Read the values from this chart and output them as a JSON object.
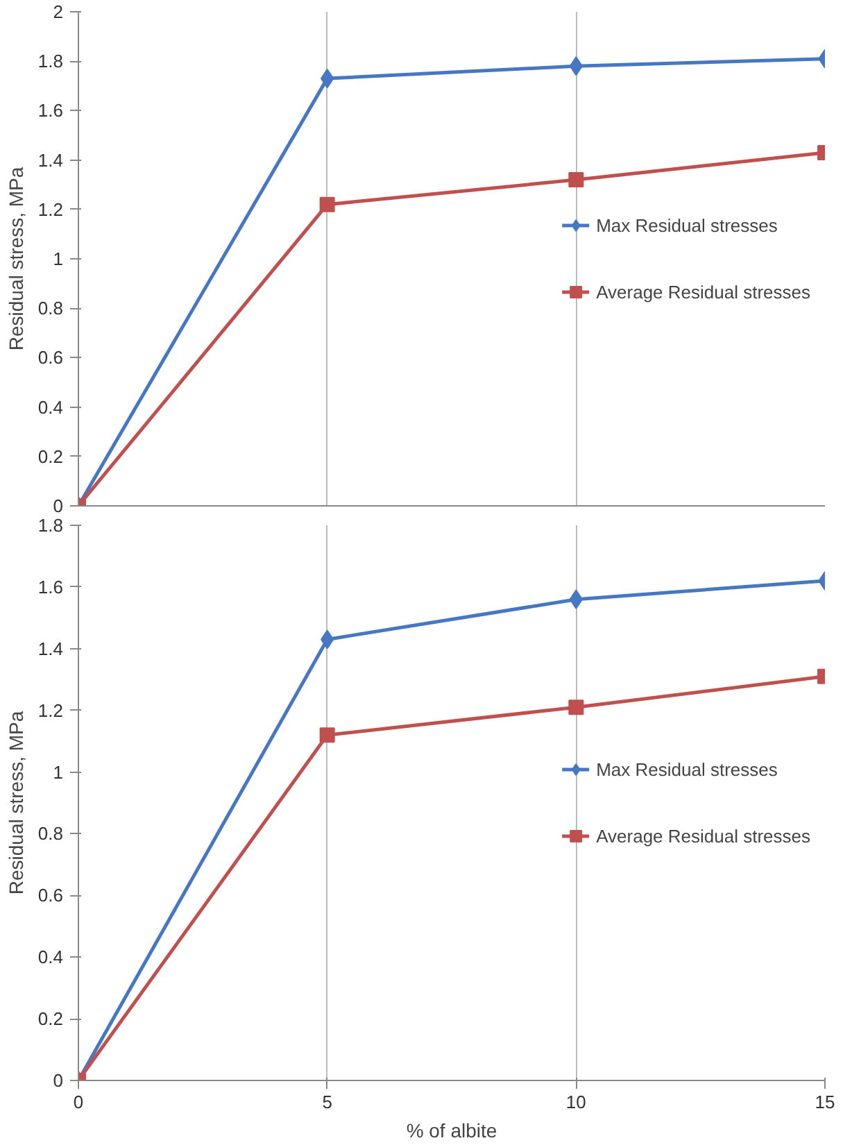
{
  "chart_data": [
    {
      "type": "line",
      "ylabel": "Residual stress, MPa",
      "x": [
        0,
        5,
        10,
        15
      ],
      "xlim": [
        0,
        15
      ],
      "xticks": [
        0,
        5,
        10,
        15
      ],
      "ylim": [
        0,
        2
      ],
      "yticks": [
        0,
        0.2,
        0.4,
        0.6,
        0.8,
        1,
        1.2,
        1.4,
        1.6,
        1.8,
        2
      ],
      "tick_labels": "y",
      "grid": "x",
      "legend": "right",
      "series": [
        {
          "name": "Max Residual stresses",
          "color": "#4677c4",
          "marker": "diamond",
          "values": [
            0,
            1.73,
            1.78,
            1.81
          ]
        },
        {
          "name": "Average Residual stresses",
          "color": "#c0504d",
          "marker": "square",
          "values": [
            0,
            1.22,
            1.32,
            1.43
          ]
        }
      ]
    },
    {
      "type": "line",
      "ylabel": "Residual stress, MPa",
      "xlabel": "% of albite",
      "x": [
        0,
        5,
        10,
        15
      ],
      "xlim": [
        0,
        15
      ],
      "xticks": [
        0,
        5,
        10,
        15
      ],
      "ylim": [
        0,
        1.8
      ],
      "yticks": [
        0,
        0.2,
        0.4,
        0.6,
        0.8,
        1,
        1.2,
        1.4,
        1.6,
        1.8
      ],
      "grid": "x",
      "legend": "right",
      "series": [
        {
          "name": "Max Residual stresses",
          "color": "#4677c4",
          "marker": "diamond",
          "values": [
            0,
            1.43,
            1.56,
            1.62
          ]
        },
        {
          "name": "Average Residual stresses",
          "color": "#c0504d",
          "marker": "square",
          "values": [
            0,
            1.12,
            1.21,
            1.31
          ]
        }
      ]
    }
  ]
}
